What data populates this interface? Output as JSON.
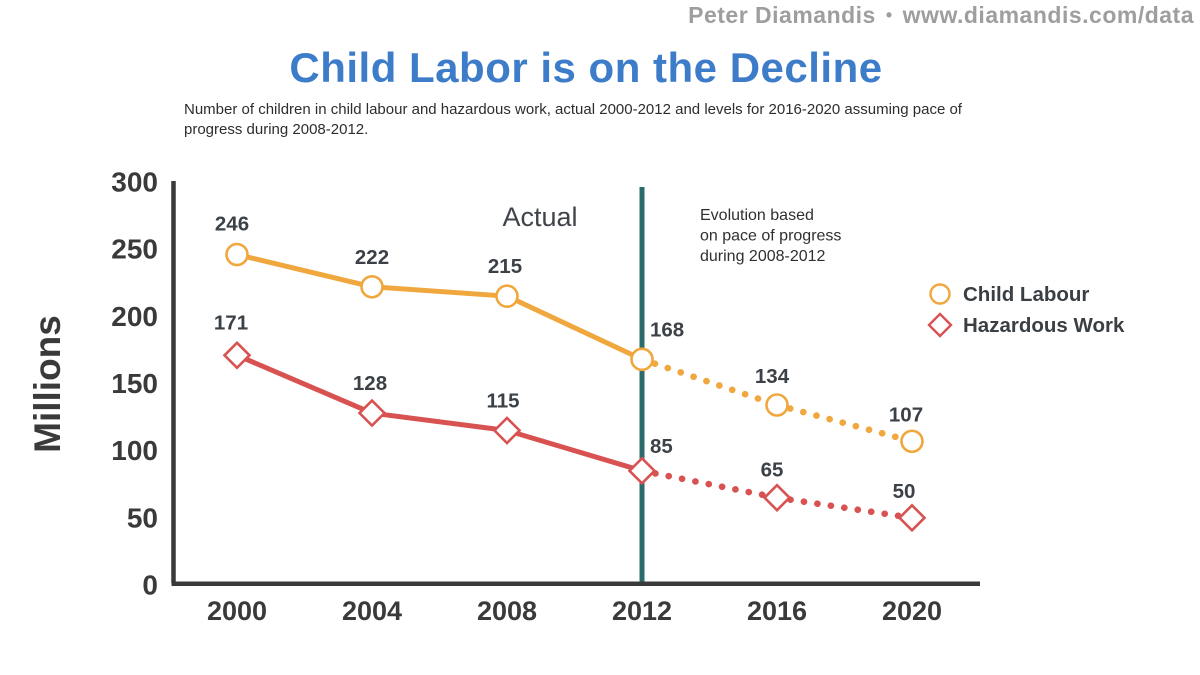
{
  "header": {
    "credit_name": "Peter Diamandis",
    "credit_separator": "•",
    "credit_url": "www.diamandis.com/data"
  },
  "title": "Child Labor is on the Decline",
  "subtitle": "Number of children in child labour and hazardous work, actual 2000-2012 and levels for 2016-2020 assuming pace of progress during 2008-2012.",
  "colors": {
    "title_blue": "#3d7cc9",
    "credit_gray": "#9e9e9e",
    "axis_dark": "#3a3a3a",
    "label_dark": "#3b4147",
    "annotation_dark": "#3f444a",
    "divider_teal": "#2c6b6b",
    "child_labour_yellow": "#efa73e",
    "hazardous_red": "#d95252"
  },
  "chart_data": {
    "type": "line",
    "title": "Child Labor is on the Decline",
    "xlabel": "",
    "ylabel": "Millions",
    "ylim": [
      0,
      300
    ],
    "yticks": [
      0,
      50,
      100,
      150,
      200,
      250,
      300
    ],
    "categories": [
      "2000",
      "2004",
      "2008",
      "2012",
      "2016",
      "2020"
    ],
    "series": [
      {
        "name": "Child Labour",
        "marker": "circle",
        "color": "#efa73e",
        "values": [
          246,
          222,
          215,
          168,
          134,
          107
        ],
        "style": "solid through 2012, dotted after",
        "label_offsets": [
          [
            -5,
            -24,
            "middle"
          ],
          [
            0,
            -23,
            "middle"
          ],
          [
            -2,
            -23,
            "middle"
          ],
          [
            8,
            -23,
            "start"
          ],
          [
            -5,
            -22,
            "middle"
          ],
          [
            -6,
            -20,
            "middle"
          ]
        ]
      },
      {
        "name": "Hazardous Work",
        "marker": "diamond",
        "color": "#d95252",
        "values": [
          171,
          128,
          115,
          85,
          65,
          50
        ],
        "style": "solid through 2012, dotted after",
        "label_offsets": [
          [
            -6,
            -26,
            "middle"
          ],
          [
            -2,
            -23,
            "middle"
          ],
          [
            -4,
            -23,
            "middle"
          ],
          [
            8,
            -18,
            "start"
          ],
          [
            -5,
            -21,
            "middle"
          ],
          [
            -8,
            -20,
            "middle"
          ]
        ]
      }
    ],
    "divider_at_category": "2012",
    "annotation_left": "Actual",
    "annotation_right_lines": [
      "Evolution based",
      "on pace of progress",
      "during 2008-2012"
    ],
    "legend": [
      {
        "label": "Child Labour",
        "marker": "circle",
        "color": "#efa73e"
      },
      {
        "label": "Hazardous Work",
        "marker": "diamond",
        "color": "#d95252"
      }
    ],
    "legend_position": "right",
    "grid": false
  }
}
